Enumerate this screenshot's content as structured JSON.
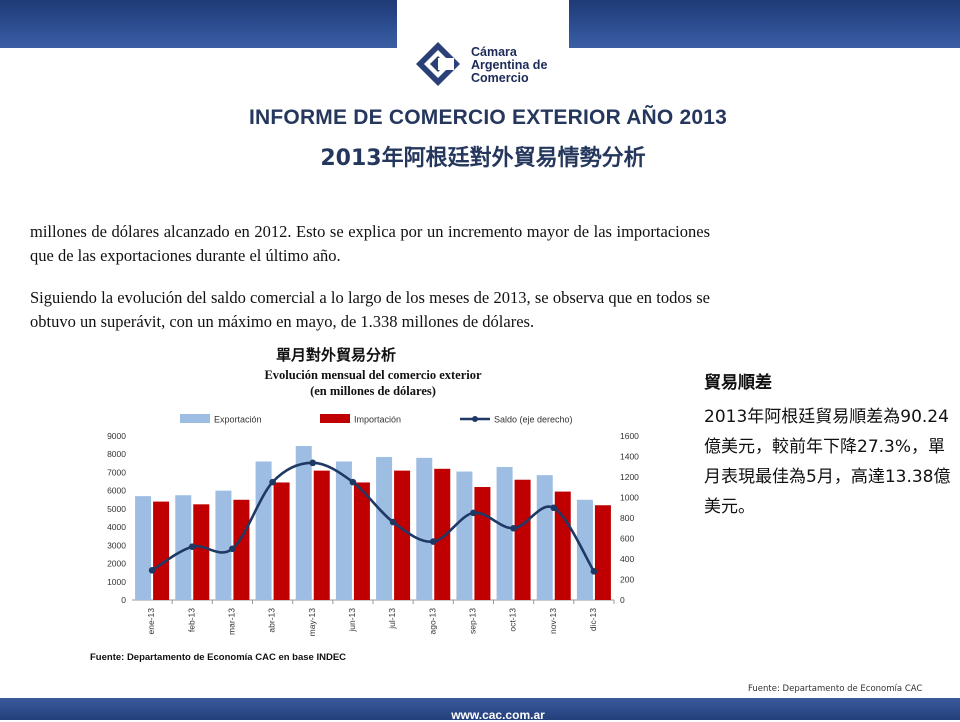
{
  "header": {
    "logo_lines": [
      "Cámara",
      "Argentina de",
      "Comercio"
    ],
    "title_es": "INFORME DE COMERCIO EXTERIOR AÑO 2013",
    "title_zh": "2013年阿根廷對外貿易情勢分析"
  },
  "body": {
    "para1": "millones de dólares alcanzado en 2012. Esto se explica por un incremento mayor de las importaciones que de las exportaciones durante el último año.",
    "para2": "Siguiendo la evolución del saldo comercial a lo largo de los meses de 2013, se observa que en todos se obtuvo un superávit, con un máximo en mayo, de 1.338 millones de dólares.",
    "chart_label_zh": "單月對外貿易分析"
  },
  "side": {
    "heading": "貿易順差",
    "body": "2013年阿根廷貿易順差為90.24億美元，較前年下降27.3%，單月表現最佳為5月，高達13.38億美元。"
  },
  "source_right": "Fuente: Departamento de Economía CAC",
  "footer": {
    "url": "www.cac.com.ar"
  },
  "colors": {
    "export": "#9dbde3",
    "import": "#c00000",
    "saldo": "#1f3864",
    "brand": "#25375d"
  },
  "chart_data": {
    "type": "bar",
    "title": "Evolución mensual del comercio exterior",
    "subtitle": "(en millones de dólares)",
    "categories": [
      "ene-13",
      "feb-13",
      "mar-13",
      "abr-13",
      "may-13",
      "jun-13",
      "jul-13",
      "ago-13",
      "sep-13",
      "oct-13",
      "nov-13",
      "dic-13"
    ],
    "series": [
      {
        "name": "Exportación",
        "type": "bar",
        "axis": "left",
        "values": [
          5700,
          5750,
          6000,
          7600,
          8450,
          7600,
          7850,
          7800,
          7050,
          7300,
          6850,
          5500
        ]
      },
      {
        "name": "Importación",
        "type": "bar",
        "axis": "left",
        "values": [
          5400,
          5250,
          5500,
          6450,
          7100,
          6450,
          7100,
          7200,
          6200,
          6600,
          5950,
          5200
        ]
      },
      {
        "name": "Saldo (eje derecho)",
        "type": "line",
        "axis": "right",
        "values": [
          290,
          520,
          500,
          1150,
          1338,
          1150,
          760,
          570,
          850,
          700,
          900,
          280
        ]
      }
    ],
    "ylim_left": [
      0,
      9000
    ],
    "yticks_left": [
      0,
      1000,
      2000,
      3000,
      4000,
      5000,
      6000,
      7000,
      8000,
      9000
    ],
    "ylim_right": [
      0,
      1600
    ],
    "yticks_right": [
      0,
      200,
      400,
      600,
      800,
      1000,
      1200,
      1400,
      1600
    ],
    "legend_position": "top",
    "grid": false,
    "source": "Fuente: Departamento de Economía CAC en base  INDEC"
  }
}
